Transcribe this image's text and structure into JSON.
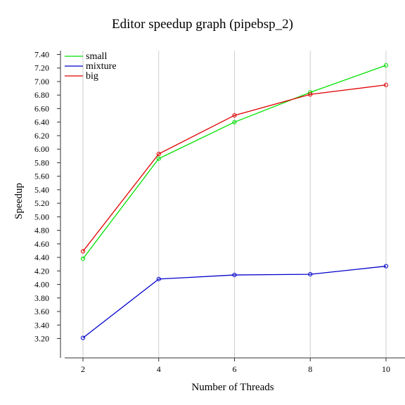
{
  "chart_data": {
    "type": "line",
    "title": "Editor speedup graph (pipebsp_2)",
    "xlabel": "Number of Threads",
    "ylabel": "Speedup",
    "x": [
      2,
      4,
      6,
      8,
      10
    ],
    "xticks": [
      "2",
      "4",
      "6",
      "8",
      "10"
    ],
    "xlim": [
      1.5,
      10.5
    ],
    "ylim": [
      3.1,
      7.4
    ],
    "yticks": [
      "3.20",
      "3.40",
      "3.60",
      "3.80",
      "4.00",
      "4.20",
      "4.40",
      "4.60",
      "4.80",
      "5.00",
      "5.20",
      "5.40",
      "5.60",
      "5.80",
      "6.00",
      "6.20",
      "6.40",
      "6.60",
      "6.80",
      "7.00",
      "7.20",
      "7.40"
    ],
    "grid": "vertical",
    "legend_position": "top-left",
    "series": [
      {
        "name": "small",
        "color": "#00e000",
        "values": [
          4.38,
          5.86,
          6.4,
          6.84,
          7.24
        ]
      },
      {
        "name": "mixture",
        "color": "#0000cc",
        "values": [
          3.21,
          4.08,
          4.14,
          4.15,
          4.27
        ]
      },
      {
        "name": "big",
        "color": "#e00000",
        "values": [
          4.49,
          5.93,
          6.5,
          6.81,
          6.95
        ]
      }
    ]
  }
}
